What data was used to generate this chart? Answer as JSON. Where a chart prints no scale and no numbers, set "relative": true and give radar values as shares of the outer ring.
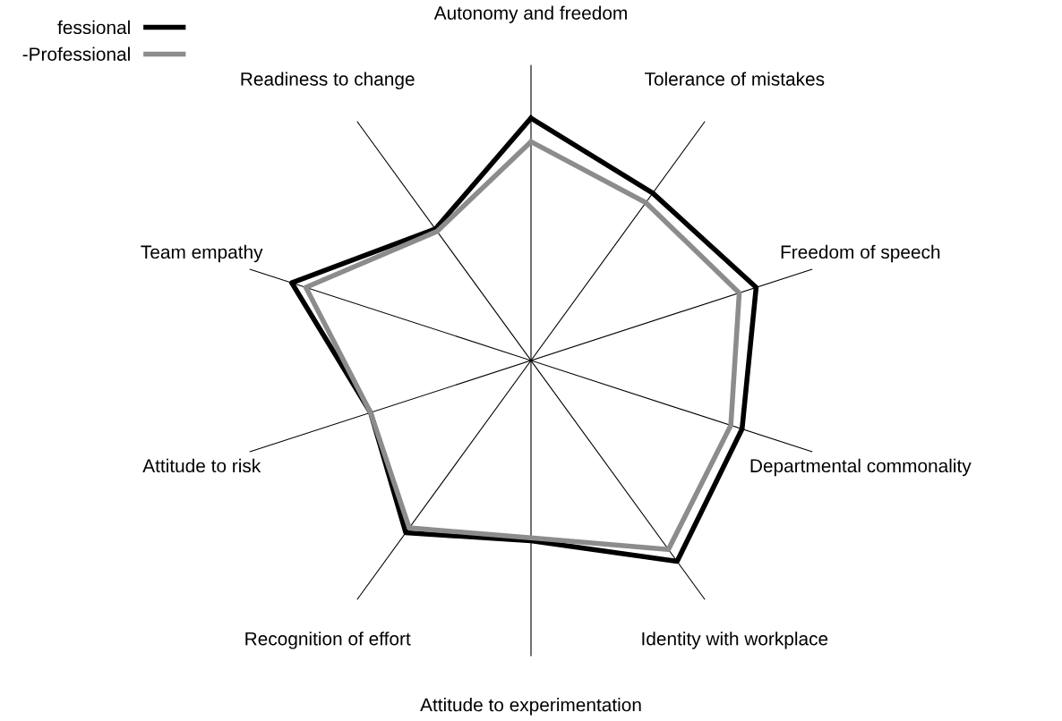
{
  "chart_data": {
    "type": "radar",
    "relative": true,
    "categories": [
      "Autonomy and freedom",
      "Tolerance of mistakes",
      "Freedom of speech",
      "Departmental commonality",
      "Identity with workplace",
      "Attitude to experimentation",
      "Recognition of effort",
      "Attitude to risk",
      "Team empathy",
      "Readiness to change"
    ],
    "series": [
      {
        "name": "fessional",
        "color": "#000000",
        "values": [
          0.82,
          0.7,
          0.8,
          0.75,
          0.84,
          0.61,
          0.72,
          0.57,
          0.85,
          0.55
        ]
      },
      {
        "name": "-Professional",
        "color": "#8c8c8c",
        "values": [
          0.74,
          0.66,
          0.74,
          0.71,
          0.79,
          0.6,
          0.7,
          0.57,
          0.8,
          0.54
        ]
      }
    ],
    "legend": "top left",
    "grid": "x",
    "marker": "none",
    "line_style": "solid"
  }
}
